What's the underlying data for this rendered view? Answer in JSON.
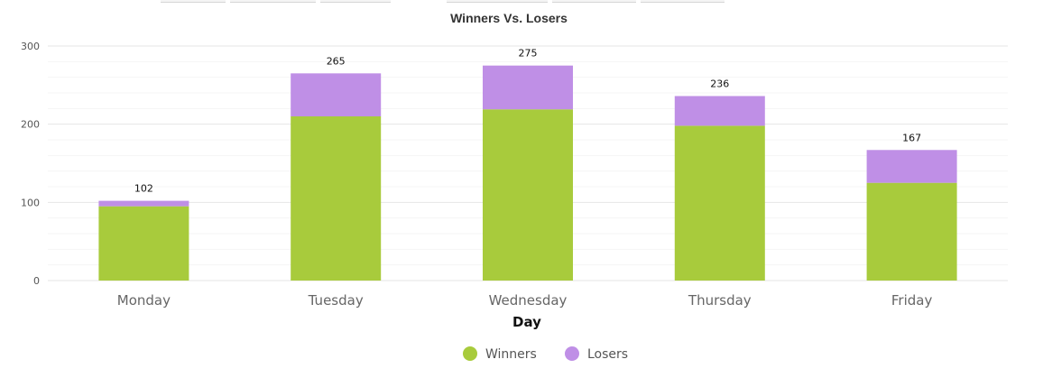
{
  "chart_data": {
    "type": "bar",
    "stacked": true,
    "title": "Winners Vs. Losers",
    "xlabel": "Day",
    "ylabel": "",
    "categories": [
      "Monday",
      "Tuesday",
      "Wednesday",
      "Thursday",
      "Friday"
    ],
    "series": [
      {
        "name": "Winners",
        "color": "#a8cb3c",
        "values": [
          95,
          210,
          219,
          198,
          125
        ]
      },
      {
        "name": "Losers",
        "color": "#bf8fe6",
        "values": [
          7,
          55,
          56,
          38,
          42
        ]
      }
    ],
    "totals": [
      "102",
      "265",
      "275",
      "236",
      "167"
    ],
    "ylim": [
      0,
      300
    ],
    "yticks": [
      "0",
      "100",
      "200",
      "300"
    ],
    "grid": true,
    "legend_position": "bottom-center"
  }
}
